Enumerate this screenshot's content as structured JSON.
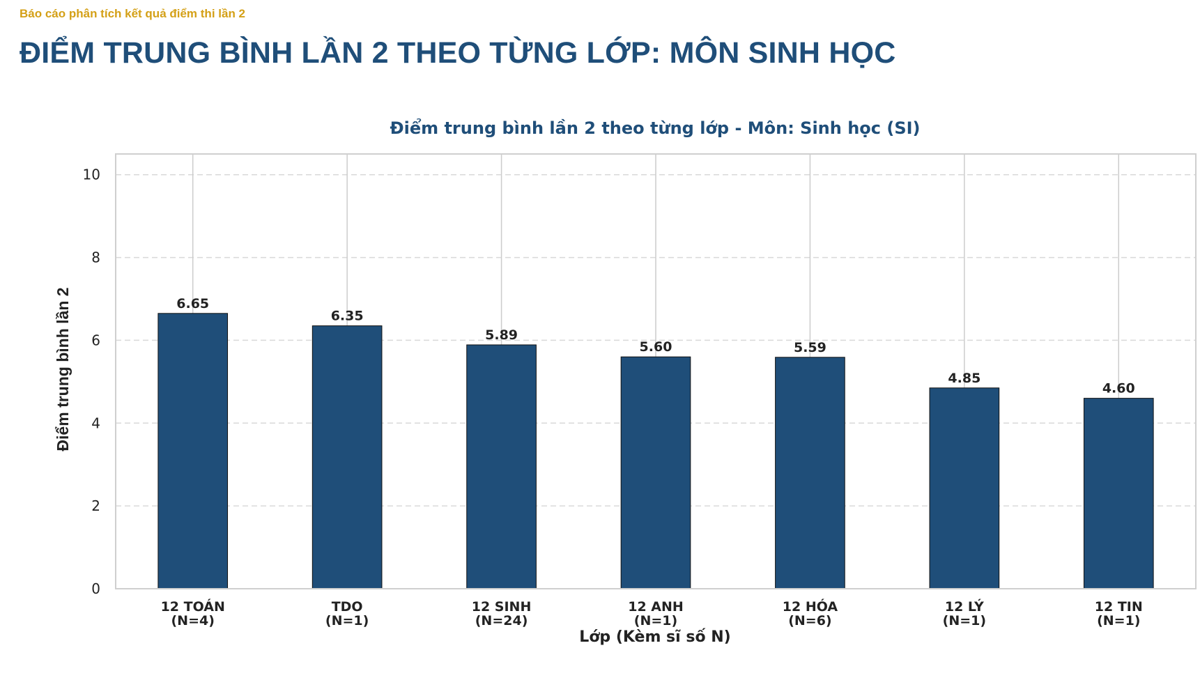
{
  "report": {
    "subtitle": "Báo cáo phân tích kết quả điểm thi lần 2",
    "title": "ĐIỂM TRUNG BÌNH LẦN 2 THEO TỪNG LỚP: MÔN SINH HỌC"
  },
  "colors": {
    "bar": "#1f4e79",
    "accent": "#d4a017",
    "title": "#1f4e79"
  },
  "chart_data": {
    "type": "bar",
    "title": "Điểm trung bình lần 2 theo từng lớp - Môn: Sinh học (SI)",
    "xlabel": "Lớp (Kèm sĩ số N)",
    "ylabel": "Điểm trung bình lần 2",
    "categories": [
      "12 TOÁN",
      "TDO",
      "12 SINH",
      "12 ANH",
      "12 HÓA",
      "12 LÝ",
      "12 TIN"
    ],
    "category_counts": [
      "(N=4)",
      "(N=1)",
      "(N=24)",
      "(N=1)",
      "(N=6)",
      "(N=1)",
      "(N=1)"
    ],
    "values": [
      6.65,
      6.35,
      5.89,
      5.6,
      5.59,
      4.85,
      4.6
    ],
    "value_labels": [
      "6.65",
      "6.35",
      "5.89",
      "5.60",
      "5.59",
      "4.85",
      "4.60"
    ],
    "ylim": [
      0,
      10.5
    ],
    "yticks": [
      0,
      2,
      4,
      6,
      8,
      10
    ],
    "grid": true
  }
}
